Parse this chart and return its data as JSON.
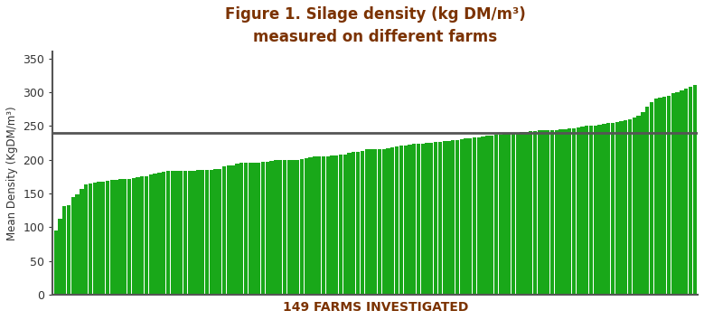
{
  "title_line1": "Figure 1. Silage density (kg DM/m³)",
  "title_line2": "measured on different farms",
  "xlabel": "149 FARMS INVESTIGATED",
  "ylabel": "Mean Density (KgDM/m³)",
  "reference_line": 240,
  "ylim": [
    0,
    360
  ],
  "yticks": [
    0,
    50,
    100,
    150,
    200,
    250,
    300,
    350
  ],
  "bar_color": "#19a819",
  "ref_line_color": "#555555",
  "title_color": "#7b3200",
  "xlabel_color": "#7b3200",
  "ylabel_color": "#333333",
  "background_color": "#ffffff",
  "values": [
    95,
    113,
    131,
    133,
    145,
    148,
    157,
    163,
    165,
    166,
    168,
    168,
    169,
    170,
    170,
    171,
    172,
    172,
    173,
    174,
    175,
    176,
    178,
    180,
    181,
    182,
    183,
    183,
    183,
    183,
    183,
    183,
    184,
    185,
    185,
    185,
    185,
    186,
    186,
    190,
    191,
    192,
    194,
    195,
    195,
    196,
    196,
    196,
    197,
    197,
    198,
    199,
    200,
    200,
    200,
    200,
    200,
    201,
    202,
    203,
    205,
    205,
    205,
    205,
    206,
    206,
    207,
    208,
    210,
    211,
    212,
    213,
    215,
    215,
    215,
    216,
    216,
    217,
    218,
    220,
    221,
    221,
    222,
    223,
    223,
    224,
    225,
    225,
    226,
    226,
    227,
    228,
    229,
    229,
    230,
    231,
    232,
    233,
    233,
    234,
    235,
    236,
    237,
    237,
    238,
    238,
    239,
    240,
    241,
    241,
    242,
    242,
    243,
    243,
    244,
    244,
    244,
    245,
    245,
    246,
    247,
    248,
    249,
    250,
    250,
    251,
    252,
    253,
    254,
    255,
    256,
    257,
    258,
    260,
    262,
    265,
    270,
    278,
    285,
    290,
    292,
    293,
    295,
    298,
    300,
    302,
    305,
    308,
    311
  ]
}
